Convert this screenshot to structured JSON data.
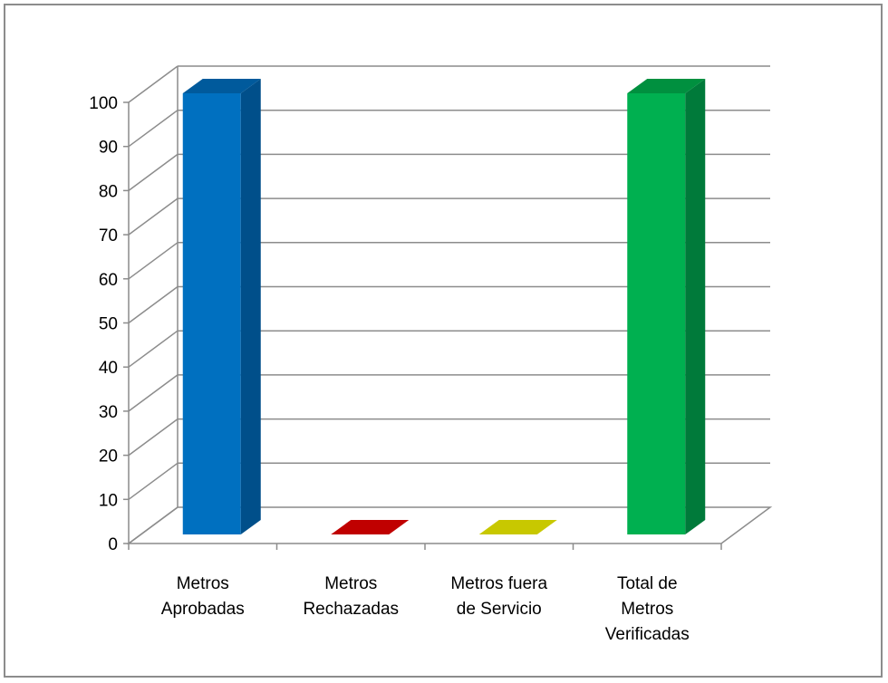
{
  "chart_data": {
    "type": "bar",
    "style": "3d-column",
    "title": "",
    "xlabel": "",
    "ylabel": "",
    "ylim": [
      0,
      100
    ],
    "yticks": [
      0,
      10,
      20,
      30,
      40,
      50,
      60,
      70,
      80,
      90,
      100
    ],
    "grid": true,
    "legend": "none",
    "categories": [
      "Metros Aprobadas",
      "Metros Rechazadas",
      "Metros fuera de Servicio",
      "Total de Metros Verificadas"
    ],
    "category_lines": [
      [
        "Metros",
        "Aprobadas"
      ],
      [
        "Metros",
        "Rechazadas"
      ],
      [
        "Metros fuera",
        "de Servicio"
      ],
      [
        "Total de",
        "Metros",
        "Verificadas"
      ]
    ],
    "values": [
      100,
      0,
      0,
      100
    ],
    "colors": [
      "#0070c0",
      "#c00000",
      "#c8c800",
      "#00b050"
    ],
    "side_colors": [
      "#004f8a",
      "#8a0000",
      "#9a9a00",
      "#007a3a"
    ],
    "top_colors": [
      "#005a9c",
      "#a00000",
      "#b0b000",
      "#00903f"
    ]
  }
}
